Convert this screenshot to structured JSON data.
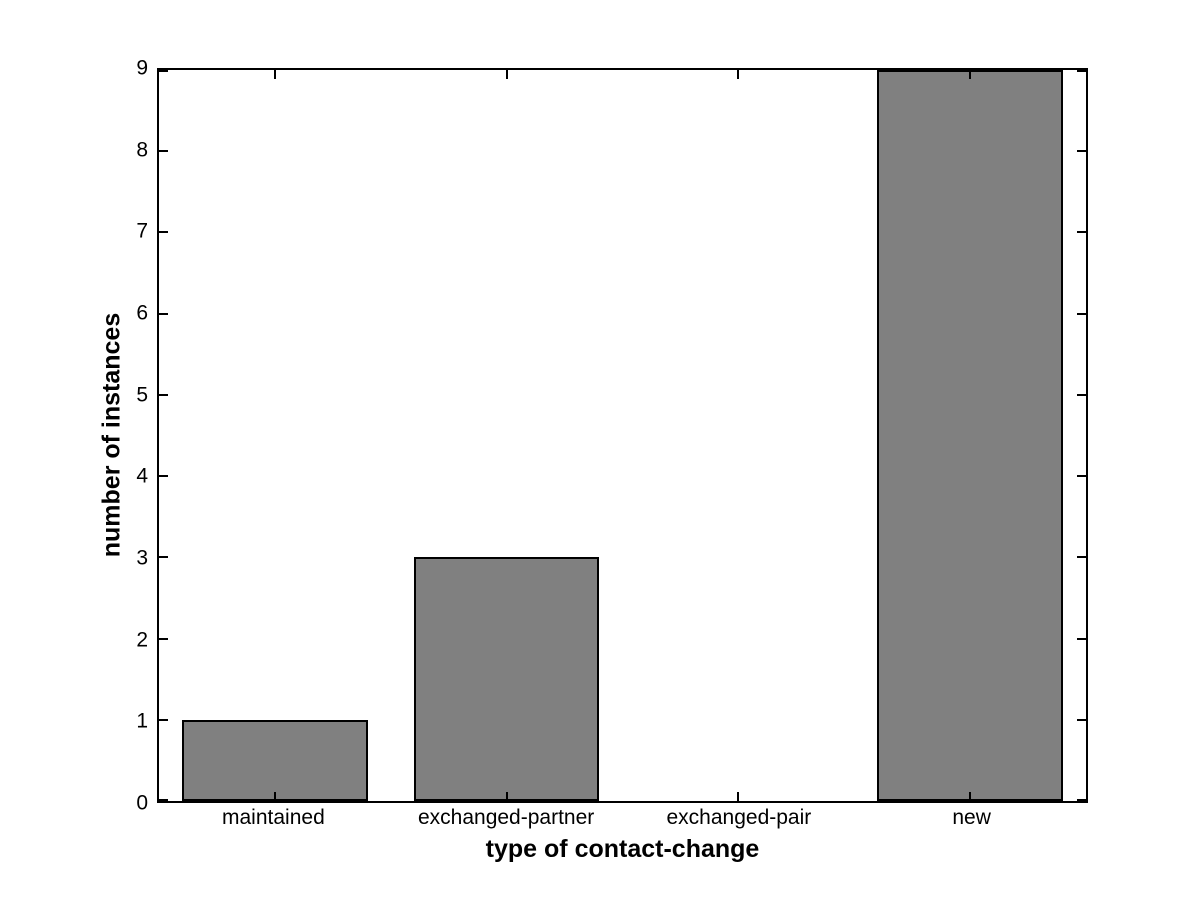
{
  "chart_data": {
    "type": "bar",
    "categories": [
      "maintained",
      "exchanged-partner",
      "exchanged-pair",
      "new"
    ],
    "values": [
      1,
      3,
      0,
      9
    ],
    "title": "",
    "xlabel": "type of contact-change",
    "ylabel": "number of instances",
    "ylim": [
      0,
      9
    ],
    "yticks": [
      0,
      1,
      2,
      3,
      4,
      5,
      6,
      7,
      8,
      9
    ],
    "bar_color": "#808080",
    "bar_edge_color": "#000000",
    "axis_color": "#000000",
    "background_color": "#ffffff",
    "bar_width_fraction": 0.8,
    "grid": false,
    "box": true,
    "tick_direction": "in",
    "legend": null
  }
}
